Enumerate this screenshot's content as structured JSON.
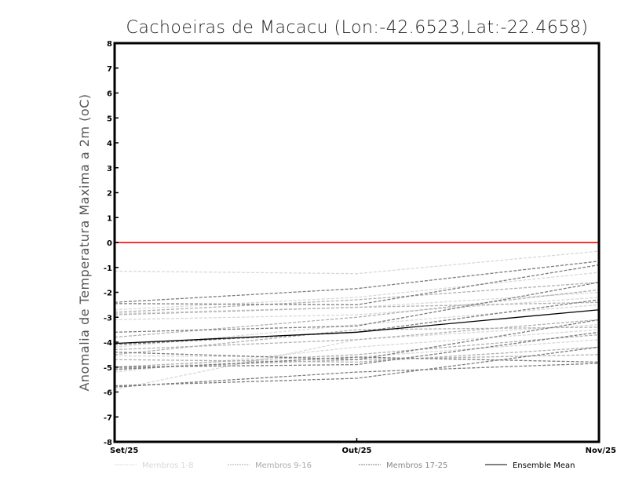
{
  "chart_data": {
    "type": "line",
    "title": "Cachoeiras de Macacu (Lon:-42.6523,Lat:-22.4658)",
    "xlabel": "",
    "ylabel": "Anomalia de Temperatura Maxima a 2m (oC)",
    "categories": [
      "Set/25",
      "Out/25",
      "Nov/25"
    ],
    "ylim": [
      -8,
      8
    ],
    "yticks": [
      "-8",
      "-7",
      "-6",
      "-5",
      "-4",
      "-3",
      "-2",
      "-1",
      "0",
      "1",
      "2",
      "3",
      "4",
      "5",
      "6",
      "7",
      "8"
    ],
    "reference_line": {
      "value": 0,
      "color": "#ff3030"
    },
    "groups": [
      {
        "name": "Membros 1-8",
        "color": "#d8d8d8",
        "series": [
          [
            -1.15,
            -1.25,
            -0.35
          ],
          [
            -2.7,
            -2.2,
            -1.2
          ],
          [
            -2.85,
            -2.6,
            -2.0
          ],
          [
            -3.1,
            -2.9,
            -2.2
          ],
          [
            -5.9,
            -3.9,
            -3.3
          ],
          [
            -4.2,
            -3.3,
            -2.5
          ],
          [
            -4.55,
            -4.6,
            -3.9
          ],
          [
            -5.2,
            -4.2,
            -3.5
          ]
        ]
      },
      {
        "name": "Membros 9-16",
        "color": "#b0b0b0",
        "series": [
          [
            -2.8,
            -2.3,
            -1.6
          ],
          [
            -3.8,
            -3.0,
            -1.9
          ],
          [
            -4.3,
            -3.9,
            -3.1
          ],
          [
            -4.7,
            -4.8,
            -4.2
          ],
          [
            -5.0,
            -4.5,
            -3.7
          ],
          [
            -2.9,
            -2.6,
            -2.4
          ],
          [
            -4.5,
            -3.5,
            -3.4
          ],
          [
            -5.05,
            -4.7,
            -4.5
          ]
        ]
      },
      {
        "name": "Membros 17-25",
        "color": "#7c7c7c",
        "series": [
          [
            -2.4,
            -1.85,
            -0.75
          ],
          [
            -2.45,
            -2.5,
            -0.9
          ],
          [
            -3.6,
            -3.35,
            -1.6
          ],
          [
            -4.1,
            -3.6,
            -2.3
          ],
          [
            -4.4,
            -4.7,
            -3.1
          ],
          [
            -5.0,
            -4.9,
            -3.6
          ],
          [
            -5.1,
            -4.6,
            -4.8
          ],
          [
            -5.75,
            -5.45,
            -4.2
          ],
          [
            -5.8,
            -5.2,
            -4.85
          ]
        ]
      }
    ],
    "mean": {
      "name": "Ensemble Mean",
      "color": "#000000",
      "values": [
        -4.05,
        -3.6,
        -2.7
      ]
    },
    "legend_position": "bottom"
  }
}
